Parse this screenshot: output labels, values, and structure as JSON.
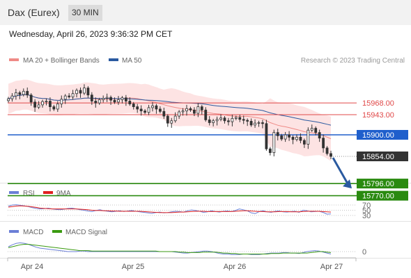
{
  "header": {
    "title": "Dax (Eurex)",
    "timeframe": "30 MIN"
  },
  "timestamp": "Wednesday, April 26, 2023 9:36:32 PM CET",
  "legend": {
    "bollinger": "MA 20 + Bollinger Bands",
    "ma50": "MA 50",
    "credit": "Research © 2023 Trading Central"
  },
  "colors": {
    "bollinger": "#ef8a86",
    "band_fill": "#fde3e3",
    "ma50": "#2a5aa0",
    "candle": "#333333",
    "resistance": "#e04848",
    "pivot": "#1f5fcc",
    "support": "#2a8a10",
    "arrow": "#2a5aa0",
    "rsi": "#6b7fd6",
    "rsi_ma": "#e02020",
    "macd": "#6b7fd6",
    "macd_signal": "#3a9a10"
  },
  "chart_data": [
    {
      "type": "candlestick",
      "panel": "price",
      "x_labels": [
        "Apr 24",
        "Apr 25",
        "Apr 26",
        "Apr 27"
      ],
      "price_levels": [
        {
          "value": 15968.0,
          "label": "15968.00",
          "kind": "resistance"
        },
        {
          "value": 15943.0,
          "label": "15943.00",
          "kind": "resistance"
        },
        {
          "value": 15900.0,
          "label": "15900.00",
          "kind": "pivot"
        },
        {
          "value": 15854.0,
          "label": "15854.00",
          "kind": "last"
        },
        {
          "value": 15796.0,
          "label": "15796.00",
          "kind": "support"
        },
        {
          "value": 15770.0,
          "label": "15770.00",
          "kind": "support"
        }
      ],
      "arrow": {
        "direction": "down",
        "target": 15796.0
      },
      "close_series": [
        15977,
        15983,
        15990,
        15986,
        15993,
        15985,
        15970,
        15959,
        15964,
        15971,
        15972,
        15960,
        15955,
        15966,
        15976,
        15983,
        15981,
        15988,
        15995,
        15989,
        16000,
        15985,
        15972,
        15968,
        15975,
        15978,
        15980,
        15974,
        15970,
        15975,
        15979,
        15972,
        15966,
        15960,
        15955,
        15951,
        15948,
        15958,
        15962,
        15955,
        15950,
        15940,
        15925,
        15930,
        15940,
        15949,
        15951,
        15956,
        15953,
        15946,
        15960,
        15953,
        15932,
        15926,
        15930,
        15933,
        15936,
        15930,
        15928,
        15935,
        15937,
        15933,
        15931,
        15929,
        15921,
        15925,
        15926,
        15924,
        15870,
        15862,
        15905,
        15898,
        15891,
        15900,
        15895,
        15890,
        15895,
        15888,
        15880,
        15910,
        15914,
        15905,
        15893,
        15872,
        15860,
        15854
      ]
    },
    {
      "type": "line",
      "panel": "RSI",
      "series": [
        {
          "name": "RSI",
          "values": [
            66,
            70,
            71,
            69,
            67,
            64,
            60,
            57,
            55,
            56,
            58,
            55,
            53,
            52,
            54,
            57,
            58,
            55,
            52,
            50,
            47,
            45,
            49,
            52,
            48,
            46,
            44,
            46,
            48,
            45,
            47,
            49,
            46,
            44,
            42,
            40,
            38,
            41,
            43,
            40,
            41,
            44,
            46,
            45,
            43,
            48,
            51,
            49,
            46,
            42,
            44,
            48,
            45,
            43,
            46,
            47,
            45,
            49,
            55,
            52,
            48,
            40,
            37,
            45,
            48,
            44,
            42,
            46,
            47,
            44,
            43,
            45,
            46,
            42,
            50,
            48,
            44,
            45,
            46,
            42,
            35,
            36
          ]
        },
        {
          "name": "9MA",
          "values": [
            62,
            64,
            66,
            67,
            66,
            65,
            63,
            61,
            58,
            57,
            56,
            55,
            55,
            55,
            55,
            55,
            55,
            55,
            54,
            53,
            52,
            50,
            49,
            49,
            48,
            48,
            47,
            47,
            46,
            46,
            46,
            46,
            46,
            46,
            45,
            44,
            43,
            42,
            41,
            41,
            41,
            41,
            42,
            43,
            43,
            44,
            45,
            46,
            46,
            46,
            45,
            45,
            45,
            45,
            45,
            45,
            45,
            46,
            47,
            48,
            48,
            47,
            46,
            45,
            45,
            44,
            44,
            44,
            45,
            45,
            45,
            44,
            44,
            44,
            45,
            46,
            46,
            46,
            46,
            45,
            44,
            43
          ]
        }
      ],
      "levels": [
        {
          "value": 70,
          "label": "70"
        },
        {
          "value": 50,
          "label": "50"
        },
        {
          "value": 30,
          "label": "30"
        }
      ]
    },
    {
      "type": "line",
      "panel": "MACD",
      "series": [
        {
          "name": "MACD",
          "values": [
            10,
            14,
            17,
            18,
            17,
            15,
            12,
            9,
            7,
            6,
            5,
            4,
            3,
            2,
            1,
            0,
            0,
            0,
            1,
            1,
            0,
            0,
            0,
            0,
            0,
            0,
            0,
            0,
            0,
            0,
            0,
            0,
            0,
            0,
            0,
            0,
            0,
            0,
            0,
            0,
            0,
            0,
            -1,
            -2,
            -3,
            -3,
            -2,
            -1,
            0,
            1,
            1,
            0,
            -2,
            -4,
            -5,
            -5,
            -6,
            -6,
            -6,
            -5,
            -5,
            -6,
            -6,
            -6,
            -5,
            -4,
            -3,
            -3,
            -3,
            -2,
            -2,
            -3,
            -3,
            -4,
            -2,
            0,
            1,
            2,
            1,
            -1,
            -3,
            -5
          ]
        },
        {
          "name": "MACD Signal",
          "values": [
            8,
            10,
            12,
            14,
            15,
            15,
            14,
            13,
            12,
            11,
            10,
            9,
            8,
            7,
            6,
            5,
            4,
            3,
            2,
            2,
            2,
            1,
            1,
            1,
            1,
            1,
            1,
            1,
            1,
            1,
            1,
            1,
            1,
            1,
            1,
            1,
            1,
            1,
            0,
            0,
            0,
            0,
            0,
            -1,
            -1,
            -2,
            -2,
            -2,
            -2,
            -1,
            -1,
            -1,
            -1,
            -2,
            -3,
            -3,
            -4,
            -4,
            -5,
            -5,
            -5,
            -5,
            -5,
            -5,
            -5,
            -5,
            -4,
            -4,
            -4,
            -3,
            -3,
            -3,
            -3,
            -3,
            -3,
            -3,
            -2,
            -1,
            0,
            0,
            -1,
            -2
          ]
        }
      ],
      "levels": [
        {
          "value": 0,
          "label": "0"
        }
      ]
    }
  ]
}
